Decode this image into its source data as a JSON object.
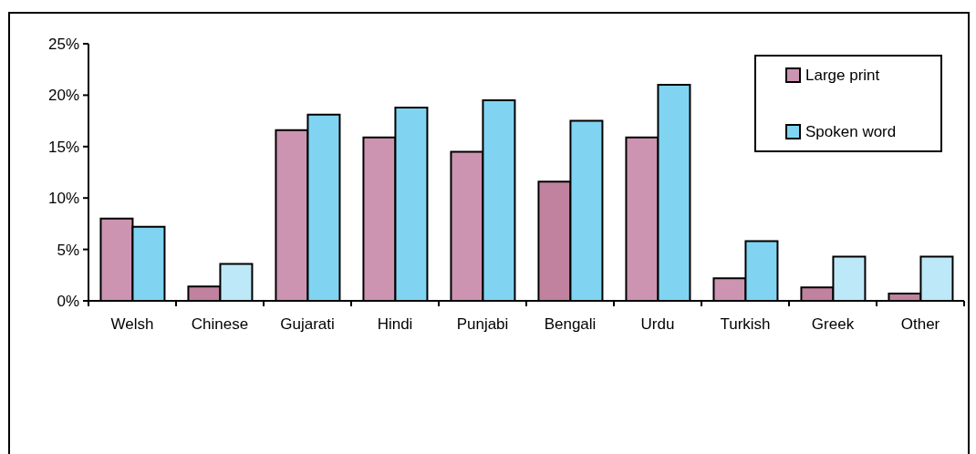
{
  "chart_data": {
    "type": "bar",
    "categories": [
      "Welsh",
      "Chinese",
      "Gujarati",
      "Hindi",
      "Punjabi",
      "Bengali",
      "Urdu",
      "Turkish",
      "Greek",
      "Other"
    ],
    "series": [
      {
        "name": "Large print",
        "color": "#cc94b0",
        "colors": [
          "#cc94b0",
          "#c0829f",
          "#cc94b0",
          "#cc94b0",
          "#cc94b0",
          "#c0829f",
          "#cc94b0",
          "#cc94b0",
          "#c0829f",
          "#c0829f"
        ],
        "values": [
          8.0,
          1.4,
          16.6,
          15.9,
          14.5,
          11.6,
          15.9,
          2.2,
          1.3,
          0.7
        ]
      },
      {
        "name": "Spoken word",
        "color": "#80d4f2",
        "colors": [
          "#80d4f2",
          "#bde8f7",
          "#80d4f2",
          "#80d4f2",
          "#80d4f2",
          "#80d4f2",
          "#80d4f2",
          "#80d4f2",
          "#bde8f7",
          "#bde8f7"
        ],
        "values": [
          7.2,
          3.6,
          18.1,
          18.8,
          19.5,
          17.5,
          21.0,
          5.8,
          4.3,
          4.3
        ]
      }
    ],
    "ylim": [
      0,
      25
    ],
    "yticks": [
      {
        "value": 0,
        "label": "0%"
      },
      {
        "value": 5,
        "label": "5%"
      },
      {
        "value": 10,
        "label": "10%"
      },
      {
        "value": 15,
        "label": "15%"
      },
      {
        "value": 20,
        "label": "20%"
      },
      {
        "value": 25,
        "label": "25%"
      }
    ],
    "legend": "top right"
  }
}
